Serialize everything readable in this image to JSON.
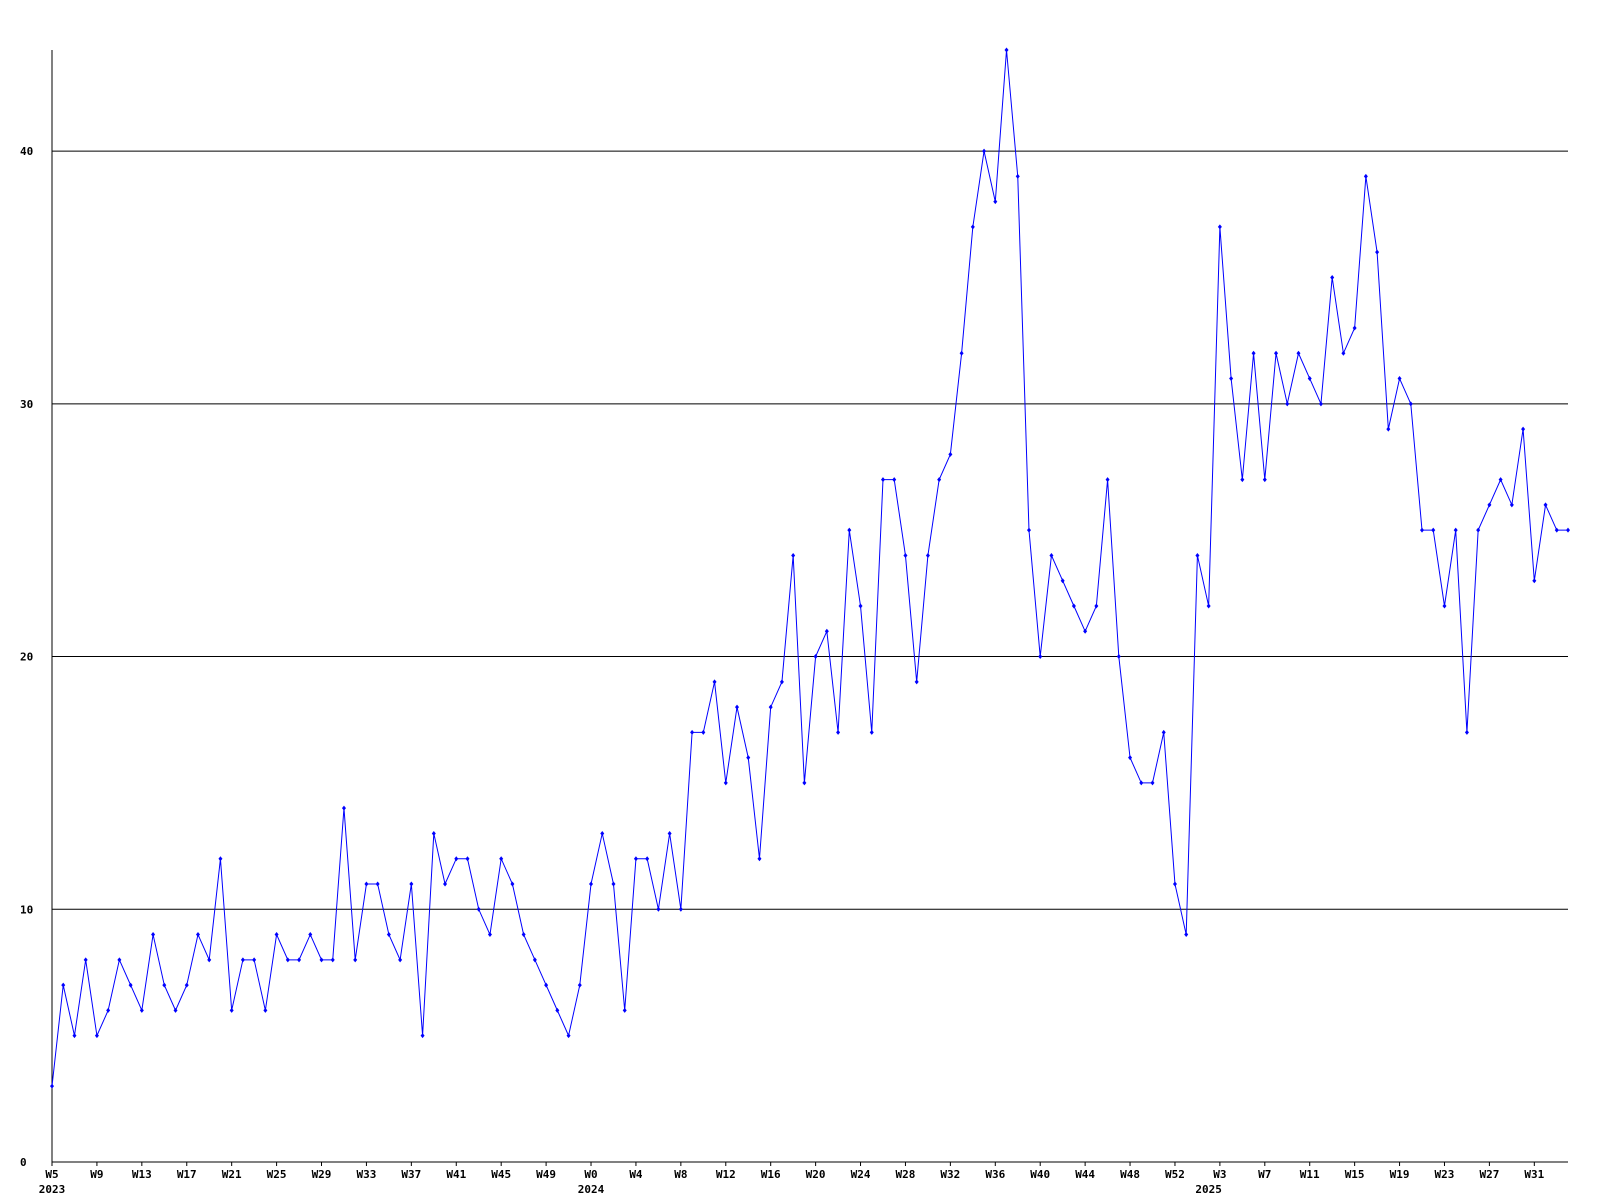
{
  "chart_data": {
    "type": "line",
    "categories": [
      "W5",
      null,
      null,
      null,
      "W9",
      null,
      null,
      null,
      "W13",
      null,
      null,
      null,
      "W17",
      null,
      null,
      null,
      "W21",
      null,
      null,
      null,
      "W25",
      null,
      null,
      null,
      "W29",
      null,
      null,
      null,
      "W33",
      null,
      null,
      null,
      "W37",
      null,
      null,
      null,
      "W41",
      null,
      null,
      null,
      "W45",
      null,
      null,
      null,
      "W49",
      null,
      null,
      null,
      "W0",
      null,
      null,
      null,
      "W4",
      null,
      null,
      null,
      "W8",
      null,
      null,
      null,
      "W12",
      null,
      null,
      null,
      "W16",
      null,
      null,
      null,
      "W20",
      null,
      null,
      null,
      "W24",
      null,
      null,
      null,
      "W28",
      null,
      null,
      null,
      "W32",
      null,
      null,
      null,
      "W36",
      null,
      null,
      null,
      "W40",
      null,
      null,
      null,
      "W44",
      null,
      null,
      null,
      "W48",
      null,
      null,
      null,
      "W52",
      null,
      null,
      null,
      "W3",
      null,
      null,
      null,
      "W7",
      null,
      null,
      null,
      "W11",
      null,
      null,
      null,
      "W15",
      null,
      null,
      null,
      "W19",
      null,
      null,
      null,
      "W23",
      null,
      null,
      null,
      "W27",
      null,
      null,
      null,
      "W31",
      null,
      null,
      null
    ],
    "year_labels": [
      "2023",
      null,
      null,
      null,
      null,
      null,
      null,
      null,
      null,
      null,
      null,
      null,
      null,
      null,
      null,
      null,
      null,
      null,
      null,
      null,
      null,
      null,
      null,
      null,
      null,
      null,
      null,
      null,
      null,
      null,
      null,
      null,
      null,
      null,
      null,
      null,
      null,
      null,
      null,
      null,
      null,
      null,
      null,
      null,
      null,
      null,
      null,
      null,
      "2024",
      null,
      null,
      null,
      null,
      null,
      null,
      null,
      null,
      null,
      null,
      null,
      null,
      null,
      null,
      null,
      null,
      null,
      null,
      null,
      null,
      null,
      null,
      null,
      null,
      null,
      null,
      null,
      null,
      null,
      null,
      null,
      null,
      null,
      null,
      null,
      null,
      null,
      null,
      null,
      null,
      null,
      null,
      null,
      null,
      null,
      null,
      null,
      null,
      null,
      null,
      null,
      null,
      null,
      null,
      "2025",
      null,
      null,
      null,
      null,
      null,
      null,
      null,
      null,
      null,
      null,
      null,
      null,
      null,
      null,
      null,
      null,
      null,
      null,
      null,
      null,
      null,
      null,
      null,
      null,
      null,
      null,
      null,
      null,
      null,
      null,
      null,
      null,
      null,
      null
    ],
    "series": [
      {
        "color": "#0000ff",
        "values": [
          3,
          7,
          5,
          8,
          5,
          6,
          8,
          7,
          6,
          9,
          7,
          6,
          7,
          9,
          8,
          12,
          6,
          8,
          8,
          6,
          9,
          8,
          8,
          9,
          8,
          8,
          14,
          8,
          11,
          11,
          9,
          8,
          11,
          5,
          13,
          11,
          12,
          12,
          10,
          9,
          12,
          11,
          9,
          8,
          7,
          6,
          5,
          7,
          11,
          13,
          11,
          6,
          12,
          12,
          10,
          13,
          10,
          17,
          17,
          19,
          15,
          18,
          16,
          12,
          18,
          19,
          24,
          15,
          20,
          21,
          17,
          25,
          22,
          17,
          27,
          27,
          24,
          19,
          24,
          27,
          28,
          32,
          37,
          40,
          38,
          44,
          39,
          25,
          20,
          24,
          23,
          22,
          21,
          22,
          27,
          20,
          16,
          15,
          15,
          17,
          11,
          9,
          24,
          22,
          37,
          31,
          27,
          32,
          27,
          32,
          30,
          32,
          31,
          30,
          35,
          32,
          33,
          39,
          36,
          29,
          31,
          30,
          25,
          25,
          22,
          25,
          17,
          25,
          26,
          27,
          26,
          29,
          23,
          26,
          25,
          25
        ]
      }
    ],
    "ylim": [
      0,
      44
    ],
    "yticks": [
      0,
      10,
      20,
      30,
      40
    ],
    "grid": true
  }
}
